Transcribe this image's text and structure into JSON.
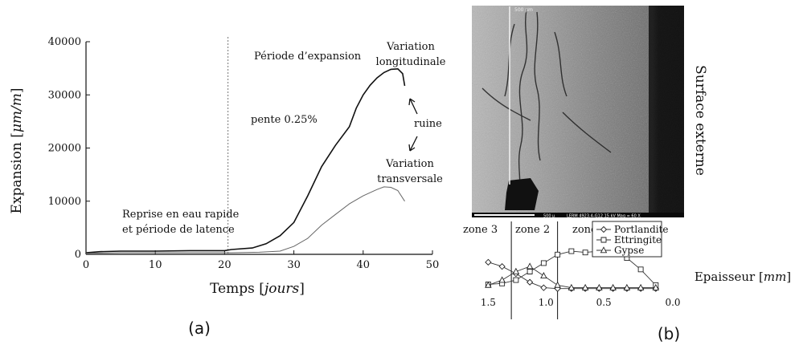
{
  "panel_a": {
    "label": "(a)",
    "annotations": {
      "periode_expansion": "Période d’expansion",
      "variation_longitudinale_1": "Variation",
      "variation_longitudinale_2": "longitudinale",
      "pente": "pente 0.25%",
      "ruine": "ruine",
      "variation_transversale_1": "Variation",
      "variation_transversale_2": "transversale",
      "reprise_1": "Reprise en eau rapide",
      "reprise_2": "et période de latence"
    }
  },
  "panel_b": {
    "label": "(b)",
    "micrograph": {
      "scale_label": "500 μ",
      "info_label": "LERM 4923.4-G12 15 kV   Mag = 60 X",
      "top_label": "500 μm"
    },
    "side_label": "Surface externe",
    "zones": [
      "zone 3",
      "zone 2",
      "zone 1"
    ],
    "xlabel_text": "Epaisseur [",
    "xlabel_unit": "mm",
    "xlabel_close": "]"
  },
  "chart_data": [
    {
      "type": "line",
      "title": "",
      "xlabel": "Temps [jours]",
      "ylabel": "Expansion [μm/m]",
      "xlim": [
        0,
        50
      ],
      "ylim": [
        0,
        40000
      ],
      "xticks": [
        0,
        10,
        20,
        30,
        40,
        50
      ],
      "yticks": [
        0,
        10000,
        20000,
        30000,
        40000
      ],
      "vline_x": 20.5,
      "grid": false,
      "series": [
        {
          "name": "Variation longitudinale",
          "color": "#111111",
          "x": [
            0,
            2,
            5,
            10,
            15,
            20,
            21,
            24,
            26,
            28,
            30,
            32,
            34,
            36,
            38,
            39,
            40,
            41,
            42,
            43,
            44,
            45,
            45.7,
            46
          ],
          "y": [
            300,
            500,
            600,
            600,
            700,
            700,
            900,
            1200,
            2000,
            3500,
            6000,
            11000,
            16500,
            20500,
            24000,
            27500,
            30000,
            31800,
            33200,
            34200,
            34800,
            34900,
            34000,
            31700
          ]
        },
        {
          "name": "Variation transversale",
          "color": "#666666",
          "x": [
            0,
            5,
            10,
            15,
            20,
            21,
            25,
            28,
            30,
            32,
            34,
            36,
            38,
            40,
            42,
            43,
            44,
            45,
            46
          ],
          "y": [
            200,
            300,
            300,
            300,
            300,
            300,
            400,
            600,
            1500,
            3000,
            5500,
            7500,
            9500,
            11000,
            12200,
            12700,
            12600,
            12000,
            10000
          ]
        }
      ]
    },
    {
      "type": "line",
      "title": "",
      "xlabel": "Epaisseur [mm]",
      "ylabel": "",
      "xlim": [
        1.6,
        0.0
      ],
      "xticks": [
        1.5,
        1.0,
        0.5,
        0.0
      ],
      "xtick_labels": [
        "1.5",
        "1.0",
        "0.5",
        "0.0"
      ],
      "zone_boundaries": [
        1.3,
        0.9
      ],
      "legend_position": "top-right",
      "series": [
        {
          "name": "Portlandite",
          "marker": "diamond",
          "x": [
            1.5,
            1.38,
            1.26,
            1.14,
            1.02,
            0.9,
            0.78,
            0.66,
            0.54,
            0.42,
            0.3,
            0.18,
            0.05
          ],
          "y": [
            0.72,
            0.62,
            0.45,
            0.25,
            0.12,
            0.1,
            0.1,
            0.1,
            0.1,
            0.1,
            0.1,
            0.1,
            0.1
          ]
        },
        {
          "name": "Ettringite",
          "marker": "square",
          "x": [
            1.5,
            1.38,
            1.26,
            1.14,
            1.02,
            0.9,
            0.78,
            0.66,
            0.54,
            0.42,
            0.3,
            0.18,
            0.05
          ],
          "y": [
            0.2,
            0.22,
            0.3,
            0.5,
            0.7,
            0.9,
            0.98,
            0.95,
            0.98,
            0.98,
            0.82,
            0.55,
            0.18
          ]
        },
        {
          "name": "Gypse",
          "marker": "triangle",
          "x": [
            1.5,
            1.38,
            1.26,
            1.14,
            1.02,
            0.9,
            0.78,
            0.66,
            0.54,
            0.42,
            0.3,
            0.18,
            0.05
          ],
          "y": [
            0.18,
            0.3,
            0.5,
            0.62,
            0.4,
            0.18,
            0.12,
            0.12,
            0.12,
            0.12,
            0.12,
            0.12,
            0.12
          ]
        }
      ]
    }
  ]
}
